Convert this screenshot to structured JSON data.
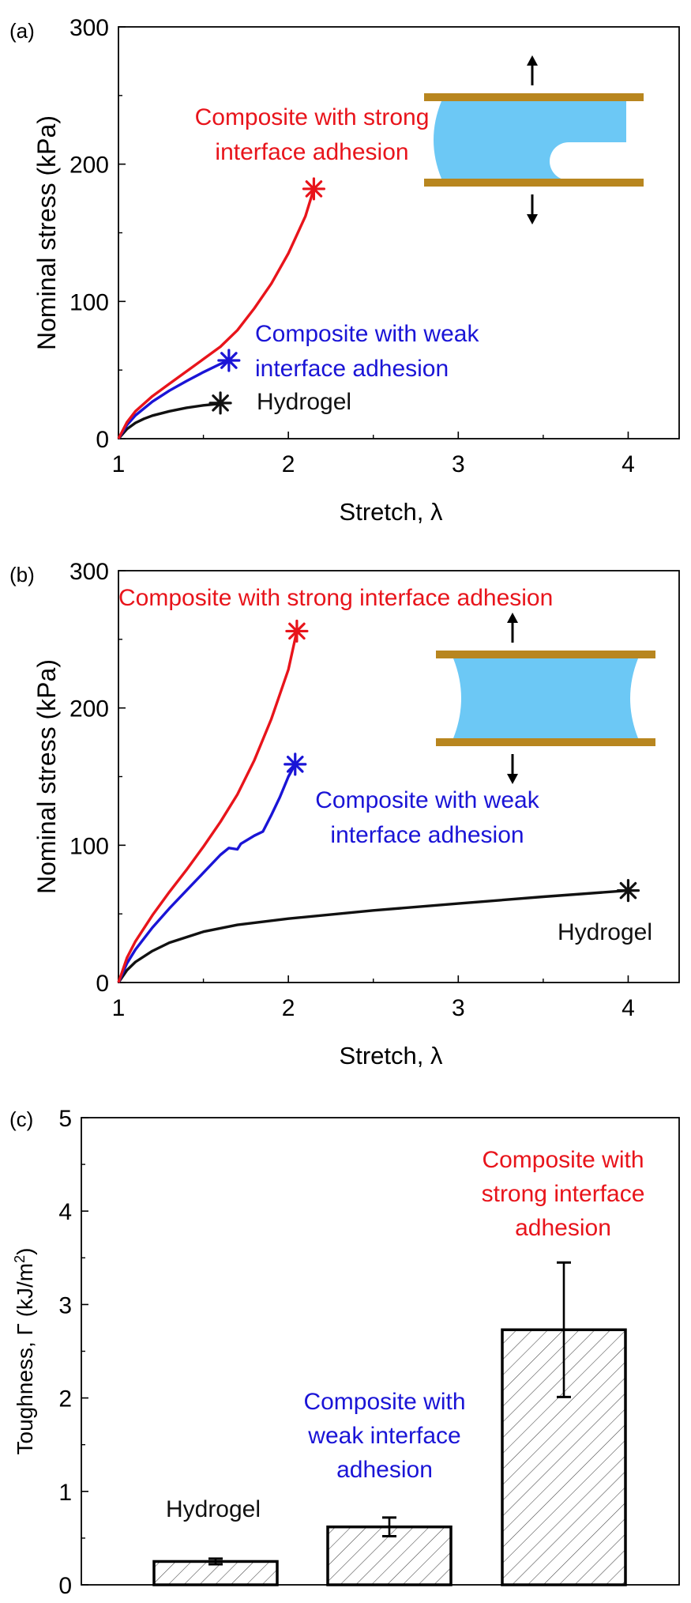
{
  "colors": {
    "red": "#e8141b",
    "blue": "#1a14d6",
    "black": "#111111",
    "gel": "#6cc8f5",
    "plate": "#b8861f"
  },
  "chart_data": [
    {
      "panel_label": "(a)",
      "type": "line",
      "xlabel": "Stretch, λ",
      "ylabel": "Nominal stress (kPa)",
      "xlim": [
        1,
        4.3
      ],
      "ylim": [
        0,
        300
      ],
      "xticks": [
        "1",
        "2",
        "3",
        "4"
      ],
      "yticks": [
        "0",
        "100",
        "200",
        "300"
      ],
      "series": [
        {
          "name": "Hydrogel",
          "color": "#111111",
          "x": [
            1.0,
            1.05,
            1.1,
            1.15,
            1.2,
            1.3,
            1.4,
            1.5,
            1.6
          ],
          "y": [
            0,
            7,
            11.5,
            14.5,
            16.8,
            20,
            22.5,
            24.3,
            25.5
          ],
          "end": [
            1.6,
            26
          ]
        },
        {
          "name": "Composite with weak interface adhesion",
          "color": "#1a14d6",
          "x": [
            1.0,
            1.05,
            1.1,
            1.2,
            1.3,
            1.4,
            1.5,
            1.6,
            1.65
          ],
          "y": [
            0,
            10,
            17,
            27,
            35,
            42,
            48.5,
            54.5,
            57
          ],
          "end": [
            1.65,
            57
          ]
        },
        {
          "name": "Composite with strong interface adhesion",
          "color": "#e8141b",
          "x": [
            1.0,
            1.05,
            1.1,
            1.2,
            1.3,
            1.4,
            1.5,
            1.6,
            1.7,
            1.8,
            1.9,
            2.0,
            2.1,
            2.15
          ],
          "y": [
            0,
            12,
            20,
            31,
            40,
            49,
            58,
            67,
            79,
            95,
            113,
            135,
            162,
            182
          ],
          "end": [
            2.15,
            182
          ]
        }
      ],
      "labels": [
        {
          "lines": [
            "Composite with strong",
            "interface adhesion"
          ],
          "color": "#e8141b"
        },
        {
          "lines": [
            "Composite with weak",
            "interface adhesion"
          ],
          "color": "#1a14d6"
        },
        {
          "lines": [
            "Hydrogel"
          ],
          "color": "#111111"
        }
      ]
    },
    {
      "panel_label": "(b)",
      "type": "line",
      "xlabel": "Stretch, λ",
      "ylabel": "Nominal stress (kPa)",
      "xlim": [
        1,
        4.3
      ],
      "ylim": [
        0,
        300
      ],
      "xticks": [
        "1",
        "2",
        "3",
        "4"
      ],
      "yticks": [
        "0",
        "100",
        "200",
        "300"
      ],
      "series": [
        {
          "name": "Hydrogel",
          "color": "#111111",
          "x": [
            1.0,
            1.05,
            1.1,
            1.2,
            1.3,
            1.5,
            1.7,
            2.0,
            2.5,
            3.0,
            3.5,
            4.0
          ],
          "y": [
            0,
            9,
            15,
            23,
            29,
            37,
            42,
            46.5,
            52.5,
            57.5,
            62.5,
            67
          ],
          "end": [
            4.0,
            67
          ]
        },
        {
          "name": "Composite with weak interface adhesion",
          "color": "#1a14d6",
          "x": [
            1.0,
            1.05,
            1.1,
            1.2,
            1.3,
            1.4,
            1.5,
            1.6,
            1.65,
            1.7,
            1.72,
            1.8,
            1.85,
            1.9,
            1.95,
            2.0,
            2.04
          ],
          "y": [
            0,
            14,
            24,
            40,
            54,
            67,
            80,
            93,
            98,
            97,
            101,
            107,
            110,
            122,
            135,
            150,
            159
          ],
          "end": [
            2.04,
            159
          ]
        },
        {
          "name": "Composite with strong interface adhesion",
          "color": "#e8141b",
          "x": [
            1.0,
            1.05,
            1.1,
            1.2,
            1.3,
            1.4,
            1.5,
            1.6,
            1.7,
            1.8,
            1.9,
            2.0,
            2.05
          ],
          "y": [
            0,
            18,
            30,
            49,
            66,
            82,
            99,
            117,
            137,
            162,
            192,
            228,
            256
          ],
          "end": [
            2.05,
            256
          ]
        }
      ],
      "labels": [
        {
          "lines": [
            "Composite with strong interface adhesion"
          ],
          "color": "#e8141b"
        },
        {
          "lines": [
            "Composite with weak",
            "interface adhesion"
          ],
          "color": "#1a14d6"
        },
        {
          "lines": [
            "Hydrogel"
          ],
          "color": "#111111"
        }
      ]
    },
    {
      "panel_label": "(c)",
      "type": "bar",
      "ylabel_main": "Toughness, Γ (kJ/m",
      "ylabel_sup": "2",
      "ylabel_close": ")",
      "ylim": [
        0,
        5
      ],
      "yticks": [
        "0",
        "1",
        "2",
        "3",
        "4",
        "5"
      ],
      "categories": [
        "Hydrogel",
        "Composite with weak interface adhesion",
        "Composite with strong interface adhesion"
      ],
      "values": [
        0.25,
        0.62,
        2.73
      ],
      "errors": [
        0.03,
        0.1,
        0.72
      ],
      "labels": [
        {
          "lines": [
            "Hydrogel"
          ],
          "color": "#111111"
        },
        {
          "lines": [
            "Composite with",
            "weak interface",
            "adhesion"
          ],
          "color": "#1a14d6"
        },
        {
          "lines": [
            "Composite with",
            "strong interface",
            "adhesion"
          ],
          "color": "#e8141b"
        }
      ]
    }
  ]
}
